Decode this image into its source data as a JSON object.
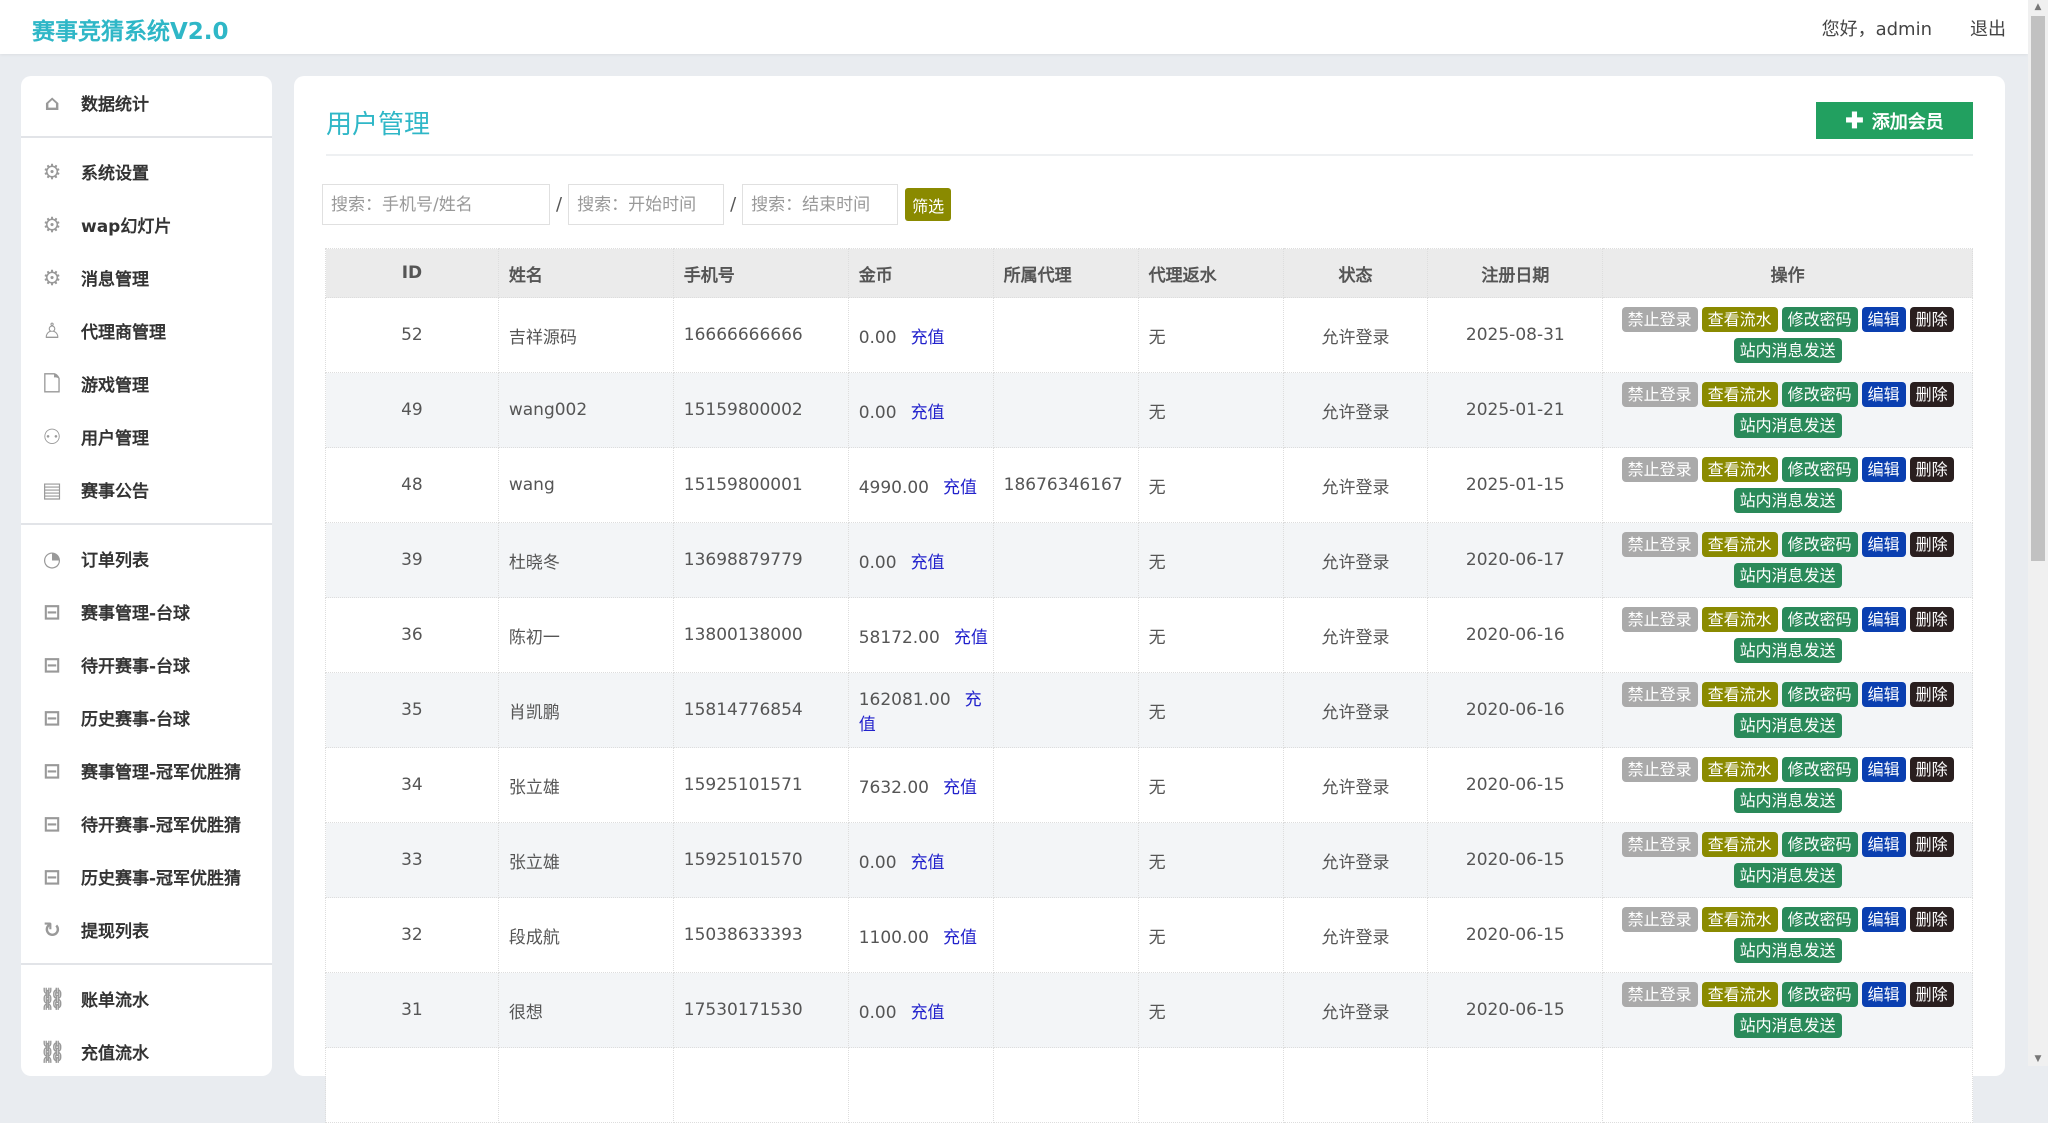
{
  "header": {
    "logo": "赛事竞猜系统V2.0",
    "greeting": "您好，admin",
    "logout": "退出"
  },
  "sidebar": {
    "groups": [
      [
        {
          "label": "数据统计",
          "icon": "home-icon"
        }
      ],
      [
        {
          "label": "系统设置",
          "icon": "gear-icon"
        },
        {
          "label": "wap幻灯片",
          "icon": "gear-icon"
        },
        {
          "label": "消息管理",
          "icon": "gear-icon"
        },
        {
          "label": "代理商管理",
          "icon": "user-icon"
        },
        {
          "label": "游戏管理",
          "icon": "file-icon"
        },
        {
          "label": "用户管理",
          "icon": "users-icon"
        },
        {
          "label": "赛事公告",
          "icon": "book-icon"
        }
      ],
      [
        {
          "label": "订单列表",
          "icon": "pie-chart-icon"
        },
        {
          "label": "赛事管理-台球",
          "icon": "inbox-icon"
        },
        {
          "label": "待开赛事-台球",
          "icon": "inbox-icon"
        },
        {
          "label": "历史赛事-台球",
          "icon": "inbox-icon"
        },
        {
          "label": "赛事管理-冠军优胜猜",
          "icon": "inbox-icon"
        },
        {
          "label": "待开赛事-冠军优胜猜",
          "icon": "inbox-icon"
        },
        {
          "label": "历史赛事-冠军优胜猜",
          "icon": "inbox-icon"
        },
        {
          "label": "提现列表",
          "icon": "refresh-icon"
        }
      ],
      [
        {
          "label": "账单流水",
          "icon": "link-icon"
        },
        {
          "label": "充值流水",
          "icon": "link-icon"
        }
      ]
    ]
  },
  "main": {
    "title": "用户管理",
    "add_button": "添加会员",
    "search": {
      "keyword_placeholder": "搜索：手机号/姓名",
      "start_placeholder": "搜索：开始时间",
      "end_placeholder": "搜索：结束时间",
      "separator": "/",
      "filter_button": "筛选"
    },
    "columns": [
      "ID",
      "姓名",
      "手机号",
      "金币",
      "所属代理",
      "代理返水",
      "状态",
      "注册日期",
      "操作"
    ],
    "recharge_label": "充值",
    "actions": [
      {
        "label": "禁止登录",
        "color": "#aaaaaa"
      },
      {
        "label": "查看流水",
        "color": "#8a8a00"
      },
      {
        "label": "修改密码",
        "color": "#2a8a5a"
      },
      {
        "label": "编辑",
        "color": "#0a3fb0"
      },
      {
        "label": "删除",
        "color": "#2a1f1f"
      },
      {
        "label": "站内消息发送",
        "color": "#2a8a5a"
      }
    ],
    "rows": [
      {
        "id": "52",
        "name": "吉祥源码",
        "phone": "16666666666",
        "gold": "0.00",
        "agent": "",
        "rebate": "无",
        "status": "允许登录",
        "date": "2025-08-31"
      },
      {
        "id": "49",
        "name": "wang002",
        "phone": "15159800002",
        "gold": "0.00",
        "agent": "",
        "rebate": "无",
        "status": "允许登录",
        "date": "2025-01-21"
      },
      {
        "id": "48",
        "name": "wang",
        "phone": "15159800001",
        "gold": "4990.00",
        "agent": "18676346167",
        "rebate": "无",
        "status": "允许登录",
        "date": "2025-01-15"
      },
      {
        "id": "39",
        "name": "杜晓冬",
        "phone": "13698879779",
        "gold": "0.00",
        "agent": "",
        "rebate": "无",
        "status": "允许登录",
        "date": "2020-06-17"
      },
      {
        "id": "36",
        "name": "陈初一",
        "phone": "13800138000",
        "gold": "58172.00",
        "agent": "",
        "rebate": "无",
        "status": "允许登录",
        "date": "2020-06-16"
      },
      {
        "id": "35",
        "name": "肖凯鹏",
        "phone": "15814776854",
        "gold": "162081.00",
        "agent": "",
        "rebate": "无",
        "status": "允许登录",
        "date": "2020-06-16"
      },
      {
        "id": "34",
        "name": "张立雄",
        "phone": "15925101571",
        "gold": "7632.00",
        "agent": "",
        "rebate": "无",
        "status": "允许登录",
        "date": "2020-06-15"
      },
      {
        "id": "33",
        "name": "张立雄",
        "phone": "15925101570",
        "gold": "0.00",
        "agent": "",
        "rebate": "无",
        "status": "允许登录",
        "date": "2020-06-15"
      },
      {
        "id": "32",
        "name": "段成航",
        "phone": "15038633393",
        "gold": "1100.00",
        "agent": "",
        "rebate": "无",
        "status": "允许登录",
        "date": "2020-06-15"
      },
      {
        "id": "31",
        "name": "很想",
        "phone": "17530171530",
        "gold": "0.00",
        "agent": "",
        "rebate": "无",
        "status": "允许登录",
        "date": "2020-06-15"
      },
      {
        "id": "",
        "name": "",
        "phone": "",
        "gold": "",
        "agent": "",
        "rebate": "",
        "status": "",
        "date": ""
      }
    ]
  }
}
